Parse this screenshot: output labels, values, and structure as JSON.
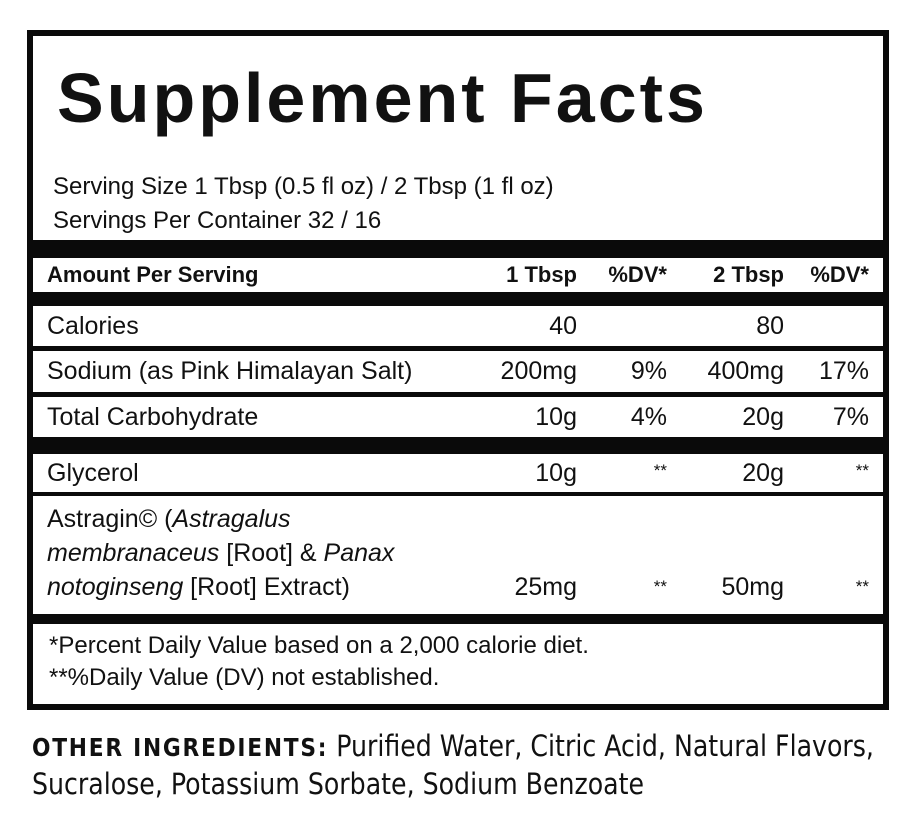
{
  "title": "Supplement Facts",
  "serving_size": "Serving Size 1 Tbsp (0.5 fl oz) / 2 Tbsp (1 fl oz)",
  "servings_per_container": "Servings Per Container 32 / 16",
  "header": {
    "label": "Amount Per Serving",
    "col1": "1 Tbsp",
    "col2": "%DV*",
    "col3": "2 Tbsp",
    "col4": "%DV*"
  },
  "rows": [
    {
      "label": "Calories",
      "v1": "40",
      "dv1": "",
      "v2": "80",
      "dv2": ""
    },
    {
      "label": "Sodium (as Pink Himalayan Salt)",
      "v1": "200mg",
      "dv1": "9%",
      "v2": "400mg",
      "dv2": "17%"
    },
    {
      "label": "Total Carbohydrate",
      "v1": "10g",
      "dv1": "4%",
      "v2": "20g",
      "dv2": "7%"
    },
    {
      "label": "Glycerol",
      "v1": "10g",
      "dv1": "**",
      "v2": "20g",
      "dv2": "**"
    },
    {
      "label_parts": [
        "Astragin© (",
        "Astragalus",
        "membranaceus",
        " [Root] & ",
        "Panax",
        "notoginseng",
        " [Root] Extract)"
      ],
      "v1": "25mg",
      "dv1": "**",
      "v2": "50mg",
      "dv2": "**"
    }
  ],
  "footnotes": [
    "*Percent Daily Value based on a 2,000 calorie diet.",
    "**%Daily Value (DV) not established."
  ],
  "other_ingredients": {
    "label": "OTHER INGREDIENTS:",
    "text": " Purified Water, Citric Acid, Natural Flavors, Sucralose, Potassium Sorbate, Sodium Benzoate"
  }
}
